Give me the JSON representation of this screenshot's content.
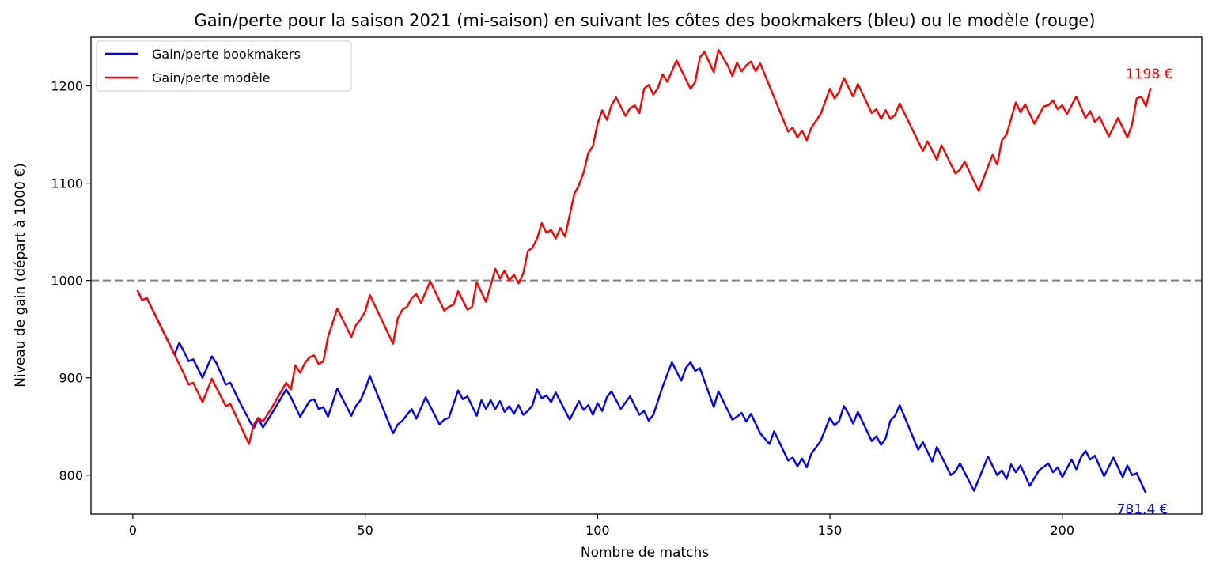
{
  "chart_data": {
    "type": "line",
    "title": "Gain/perte pour la saison 2021 (mi-saison) en suivant les côtes des bookmakers (bleu) ou le modèle (rouge)",
    "xlabel": "Nombre de matchs",
    "ylabel": "Niveau de gain (départ à 1000 €)",
    "xlim": [
      -9,
      230
    ],
    "ylim": [
      760,
      1250
    ],
    "xticks": [
      0,
      50,
      100,
      150,
      200
    ],
    "yticks": [
      800,
      900,
      1000,
      1100,
      1200
    ],
    "reference_line": {
      "y": 1000,
      "style": "dashed",
      "color": "#808080"
    },
    "legend": {
      "placement": "top-left"
    },
    "series": [
      {
        "name": "Gain/perte bookmakers",
        "color": "#0000ff",
        "end_label": "781.4 €",
        "points": [
          [
            1,
            990
          ],
          [
            2,
            980
          ],
          [
            3,
            982
          ],
          [
            9,
            924
          ],
          [
            10,
            936
          ],
          [
            11,
            927
          ],
          [
            12,
            917
          ],
          [
            13,
            919
          ],
          [
            15,
            900
          ],
          [
            17,
            922
          ],
          [
            18,
            915
          ],
          [
            20,
            893
          ],
          [
            21,
            895
          ],
          [
            23,
            875
          ],
          [
            26,
            848
          ],
          [
            27,
            858
          ],
          [
            28,
            849
          ],
          [
            30,
            864
          ],
          [
            33,
            888
          ],
          [
            34,
            880
          ],
          [
            36,
            860
          ],
          [
            38,
            876
          ],
          [
            39,
            878
          ],
          [
            40,
            868
          ],
          [
            41,
            870
          ],
          [
            42,
            860
          ],
          [
            44,
            889
          ],
          [
            47,
            861
          ],
          [
            48,
            871
          ],
          [
            49,
            877
          ],
          [
            50,
            888
          ],
          [
            51,
            902
          ],
          [
            56,
            843
          ],
          [
            57,
            852
          ],
          [
            58,
            856
          ],
          [
            60,
            868
          ],
          [
            61,
            858
          ],
          [
            63,
            880
          ],
          [
            66,
            852
          ],
          [
            67,
            857
          ],
          [
            68,
            859
          ],
          [
            70,
            887
          ],
          [
            71,
            878
          ],
          [
            72,
            881
          ],
          [
            74,
            861
          ],
          [
            75,
            877
          ],
          [
            76,
            868
          ],
          [
            77,
            877
          ],
          [
            78,
            868
          ],
          [
            79,
            876
          ],
          [
            80,
            865
          ],
          [
            81,
            871
          ],
          [
            82,
            863
          ],
          [
            83,
            872
          ],
          [
            84,
            862
          ],
          [
            85,
            866
          ],
          [
            86,
            872
          ],
          [
            87,
            888
          ],
          [
            88,
            879
          ],
          [
            89,
            882
          ],
          [
            90,
            875
          ],
          [
            91,
            885
          ],
          [
            94,
            857
          ],
          [
            96,
            876
          ],
          [
            97,
            867
          ],
          [
            98,
            872
          ],
          [
            99,
            862
          ],
          [
            100,
            874
          ],
          [
            101,
            866
          ],
          [
            102,
            880
          ],
          [
            103,
            886
          ],
          [
            105,
            868
          ],
          [
            107,
            881
          ],
          [
            109,
            862
          ],
          [
            110,
            866
          ],
          [
            111,
            856
          ],
          [
            112,
            862
          ],
          [
            114,
            891
          ],
          [
            116,
            916
          ],
          [
            118,
            897
          ],
          [
            119,
            910
          ],
          [
            120,
            916
          ],
          [
            121,
            907
          ],
          [
            122,
            910
          ],
          [
            125,
            870
          ],
          [
            126,
            886
          ],
          [
            129,
            857
          ],
          [
            130,
            860
          ],
          [
            131,
            864
          ],
          [
            132,
            855
          ],
          [
            133,
            863
          ],
          [
            135,
            843
          ],
          [
            137,
            832
          ],
          [
            138,
            845
          ],
          [
            141,
            815
          ],
          [
            142,
            818
          ],
          [
            143,
            809
          ],
          [
            144,
            817
          ],
          [
            145,
            808
          ],
          [
            146,
            822
          ],
          [
            148,
            835
          ],
          [
            150,
            859
          ],
          [
            151,
            851
          ],
          [
            152,
            856
          ],
          [
            153,
            871
          ],
          [
            154,
            863
          ],
          [
            155,
            853
          ],
          [
            156,
            865
          ],
          [
            159,
            835
          ],
          [
            160,
            840
          ],
          [
            161,
            831
          ],
          [
            162,
            838
          ],
          [
            163,
            856
          ],
          [
            164,
            861
          ],
          [
            165,
            872
          ],
          [
            169,
            826
          ],
          [
            170,
            834
          ],
          [
            172,
            814
          ],
          [
            173,
            829
          ],
          [
            176,
            800
          ],
          [
            177,
            804
          ],
          [
            178,
            812
          ],
          [
            181,
            784
          ],
          [
            184,
            819
          ],
          [
            186,
            800
          ],
          [
            187,
            805
          ],
          [
            188,
            796
          ],
          [
            189,
            811
          ],
          [
            190,
            803
          ],
          [
            191,
            810
          ],
          [
            193,
            789
          ],
          [
            195,
            805
          ],
          [
            197,
            812
          ],
          [
            198,
            803
          ],
          [
            199,
            808
          ],
          [
            200,
            798
          ],
          [
            202,
            816
          ],
          [
            203,
            806
          ],
          [
            204,
            818
          ],
          [
            205,
            825
          ],
          [
            206,
            816
          ],
          [
            207,
            820
          ],
          [
            209,
            799
          ],
          [
            211,
            818
          ],
          [
            213,
            798
          ],
          [
            214,
            810
          ],
          [
            215,
            800
          ],
          [
            216,
            802
          ],
          [
            218,
            781.4
          ]
        ]
      },
      {
        "name": "Gain/perte modèle",
        "color": "#ff0000",
        "end_label": "1198 €",
        "points": [
          [
            1,
            990
          ],
          [
            2,
            980
          ],
          [
            3,
            982
          ],
          [
            11,
            904
          ],
          [
            12,
            893
          ],
          [
            13,
            895
          ],
          [
            15,
            875
          ],
          [
            17,
            899
          ],
          [
            20,
            871
          ],
          [
            21,
            873
          ],
          [
            25,
            832
          ],
          [
            26,
            852
          ],
          [
            27,
            859
          ],
          [
            28,
            855
          ],
          [
            30,
            870
          ],
          [
            33,
            895
          ],
          [
            34,
            888
          ],
          [
            35,
            913
          ],
          [
            36,
            905
          ],
          [
            37,
            915
          ],
          [
            38,
            921
          ],
          [
            39,
            923
          ],
          [
            40,
            914
          ],
          [
            41,
            917
          ],
          [
            42,
            942
          ],
          [
            44,
            971
          ],
          [
            47,
            942
          ],
          [
            48,
            954
          ],
          [
            49,
            960
          ],
          [
            50,
            968
          ],
          [
            51,
            985
          ],
          [
            56,
            935
          ],
          [
            57,
            961
          ],
          [
            58,
            970
          ],
          [
            59,
            973
          ],
          [
            60,
            982
          ],
          [
            61,
            986
          ],
          [
            62,
            977
          ],
          [
            64,
            999
          ],
          [
            67,
            969
          ],
          [
            68,
            973
          ],
          [
            69,
            975
          ],
          [
            70,
            989
          ],
          [
            72,
            970
          ],
          [
            73,
            973
          ],
          [
            74,
            998
          ],
          [
            76,
            978
          ],
          [
            78,
            1012
          ],
          [
            79,
            1002
          ],
          [
            80,
            1010
          ],
          [
            81,
            1000
          ],
          [
            82,
            1006
          ],
          [
            83,
            997
          ],
          [
            84,
            1007
          ],
          [
            85,
            1030
          ],
          [
            86,
            1034
          ],
          [
            87,
            1043
          ],
          [
            88,
            1059
          ],
          [
            89,
            1049
          ],
          [
            90,
            1052
          ],
          [
            91,
            1043
          ],
          [
            92,
            1054
          ],
          [
            93,
            1045
          ],
          [
            95,
            1089
          ],
          [
            96,
            1098
          ],
          [
            97,
            1111
          ],
          [
            98,
            1131
          ],
          [
            99,
            1138
          ],
          [
            100,
            1161
          ],
          [
            101,
            1175
          ],
          [
            102,
            1165
          ],
          [
            103,
            1180
          ],
          [
            104,
            1188
          ],
          [
            106,
            1169
          ],
          [
            107,
            1177
          ],
          [
            108,
            1180
          ],
          [
            109,
            1172
          ],
          [
            110,
            1197
          ],
          [
            111,
            1201
          ],
          [
            112,
            1191
          ],
          [
            113,
            1198
          ],
          [
            114,
            1212
          ],
          [
            115,
            1204
          ],
          [
            117,
            1226
          ],
          [
            120,
            1197
          ],
          [
            121,
            1204
          ],
          [
            122,
            1229
          ],
          [
            123,
            1235
          ],
          [
            125,
            1214
          ],
          [
            126,
            1237
          ],
          [
            128,
            1221
          ],
          [
            129,
            1210
          ],
          [
            130,
            1224
          ],
          [
            131,
            1215
          ],
          [
            132,
            1221
          ],
          [
            133,
            1225
          ],
          [
            134,
            1215
          ],
          [
            135,
            1223
          ],
          [
            141,
            1153
          ],
          [
            142,
            1157
          ],
          [
            143,
            1147
          ],
          [
            144,
            1154
          ],
          [
            145,
            1144
          ],
          [
            146,
            1157
          ],
          [
            148,
            1171
          ],
          [
            150,
            1197
          ],
          [
            151,
            1187
          ],
          [
            152,
            1194
          ],
          [
            153,
            1208
          ],
          [
            155,
            1189
          ],
          [
            156,
            1202
          ],
          [
            159,
            1172
          ],
          [
            160,
            1176
          ],
          [
            161,
            1166
          ],
          [
            162,
            1175
          ],
          [
            163,
            1166
          ],
          [
            164,
            1170
          ],
          [
            165,
            1182
          ],
          [
            170,
            1133
          ],
          [
            171,
            1143
          ],
          [
            173,
            1124
          ],
          [
            174,
            1139
          ],
          [
            177,
            1110
          ],
          [
            178,
            1114
          ],
          [
            179,
            1122
          ],
          [
            182,
            1092
          ],
          [
            185,
            1129
          ],
          [
            186,
            1119
          ],
          [
            187,
            1144
          ],
          [
            188,
            1150
          ],
          [
            190,
            1183
          ],
          [
            191,
            1173
          ],
          [
            192,
            1181
          ],
          [
            194,
            1161
          ],
          [
            196,
            1179
          ],
          [
            197,
            1180
          ],
          [
            198,
            1185
          ],
          [
            199,
            1176
          ],
          [
            200,
            1180
          ],
          [
            201,
            1171
          ],
          [
            203,
            1189
          ],
          [
            205,
            1167
          ],
          [
            206,
            1174
          ],
          [
            207,
            1163
          ],
          [
            208,
            1168
          ],
          [
            210,
            1148
          ],
          [
            212,
            1167
          ],
          [
            214,
            1147
          ],
          [
            215,
            1160
          ],
          [
            216,
            1187
          ],
          [
            217,
            1189
          ],
          [
            218,
            1179
          ],
          [
            219,
            1198
          ]
        ]
      }
    ]
  }
}
